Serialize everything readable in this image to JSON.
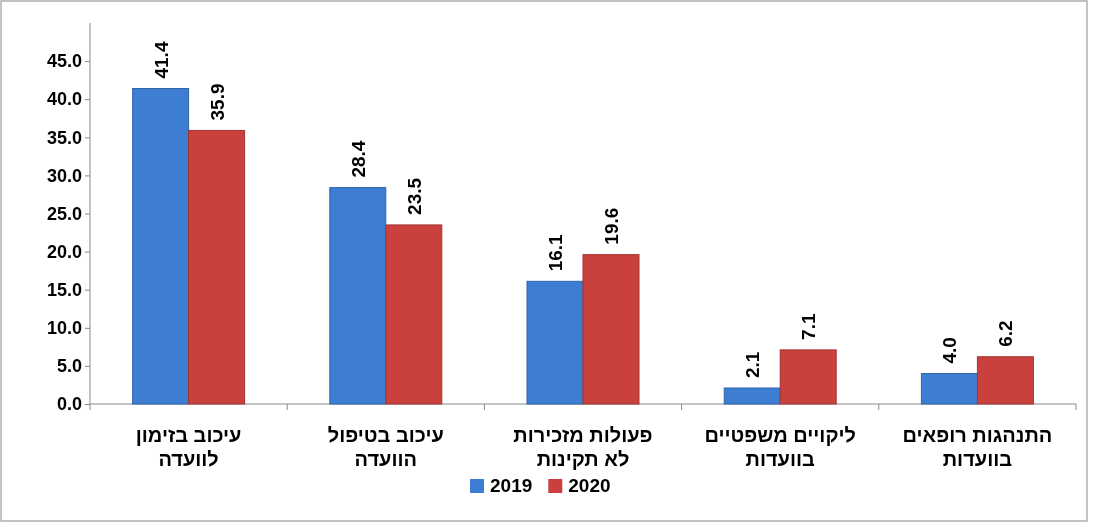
{
  "chart_data": {
    "type": "bar",
    "categories": [
      "עיכוב בזימון לוועדה",
      "עיכוב בטיפול הוועדה",
      "פעולות מזכירות לא תקינות",
      "ליקויים משפטיים בוועדות",
      "התנהגות רופאים בוועדות"
    ],
    "series": [
      {
        "name": "2019",
        "color": "#3d7dd2",
        "values": [
          41.4,
          28.4,
          16.1,
          2.1,
          4.0
        ],
        "value_labels": [
          "41.4",
          "28.4",
          "16.1",
          "2.1",
          "4.0"
        ]
      },
      {
        "name": "2020",
        "color": "#c9403c",
        "values": [
          35.9,
          23.5,
          19.6,
          7.1,
          6.2
        ],
        "value_labels": [
          "35.9",
          "23.5",
          "19.6",
          "7.1",
          "6.2"
        ]
      }
    ],
    "ylim": [
      0,
      50
    ],
    "yticks": [
      {
        "value": 0,
        "label": "0.0"
      },
      {
        "value": 5,
        "label": "5.0"
      },
      {
        "value": 10,
        "label": "10.0"
      },
      {
        "value": 15,
        "label": "15.0"
      },
      {
        "value": 20,
        "label": "20.0"
      },
      {
        "value": 25,
        "label": "25.0"
      },
      {
        "value": 30,
        "label": "30.0"
      },
      {
        "value": 35,
        "label": "35.0"
      },
      {
        "value": 40,
        "label": "40.0"
      },
      {
        "value": 45,
        "label": "45.0"
      }
    ],
    "grid": false,
    "legend": "bottom"
  }
}
